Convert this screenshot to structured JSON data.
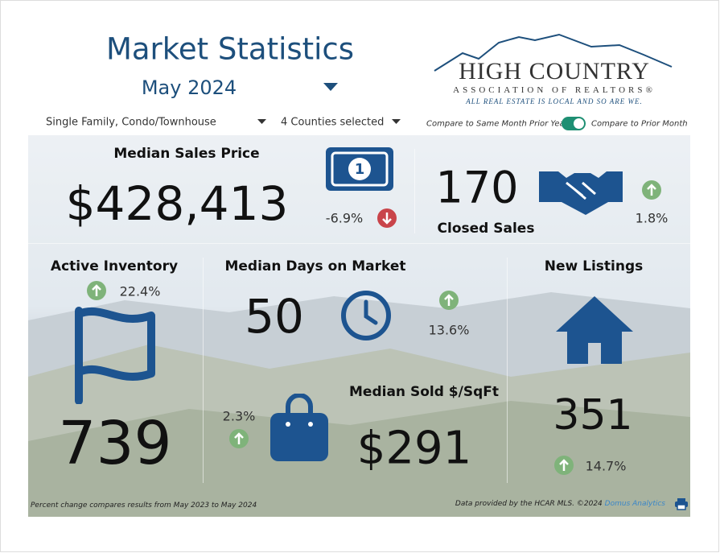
{
  "header": {
    "title": "Market Statistics",
    "period": "May 2024"
  },
  "filters": {
    "property_type": "Single Family, Condo/Townhouse",
    "counties": "4 Counties selected",
    "toggle_left": "Compare to Same Month Prior Year",
    "toggle_right": "Compare to Prior Month"
  },
  "logo": {
    "name": "HIGH COUNTRY",
    "subtitle": "ASSOCIATION OF REALTORS®",
    "tagline": "ALL REAL ESTATE IS LOCAL AND SO ARE WE."
  },
  "metrics": [
    {
      "label": "Median Sales Price",
      "value": "$428,413",
      "change": "-6.9%"
    },
    {
      "label": "Closed Sales",
      "value": "170",
      "change": "1.8%"
    },
    {
      "label": "Active Inventory",
      "value": "739",
      "change": "22.4%"
    },
    {
      "label": "Median Days on Market",
      "value": "50",
      "change": "13.6%"
    },
    {
      "label": "New Listings",
      "value": "351",
      "change": "14.7%"
    },
    {
      "label": "Median Sold $/SqFt",
      "value": "$291",
      "change": "2.3%"
    }
  ],
  "footer": {
    "note": "Percent change compares results from May 2023 to May 2024",
    "credit": "Data provided by the HCAR MLS. ©2024",
    "source": "Domus Analytics"
  }
}
